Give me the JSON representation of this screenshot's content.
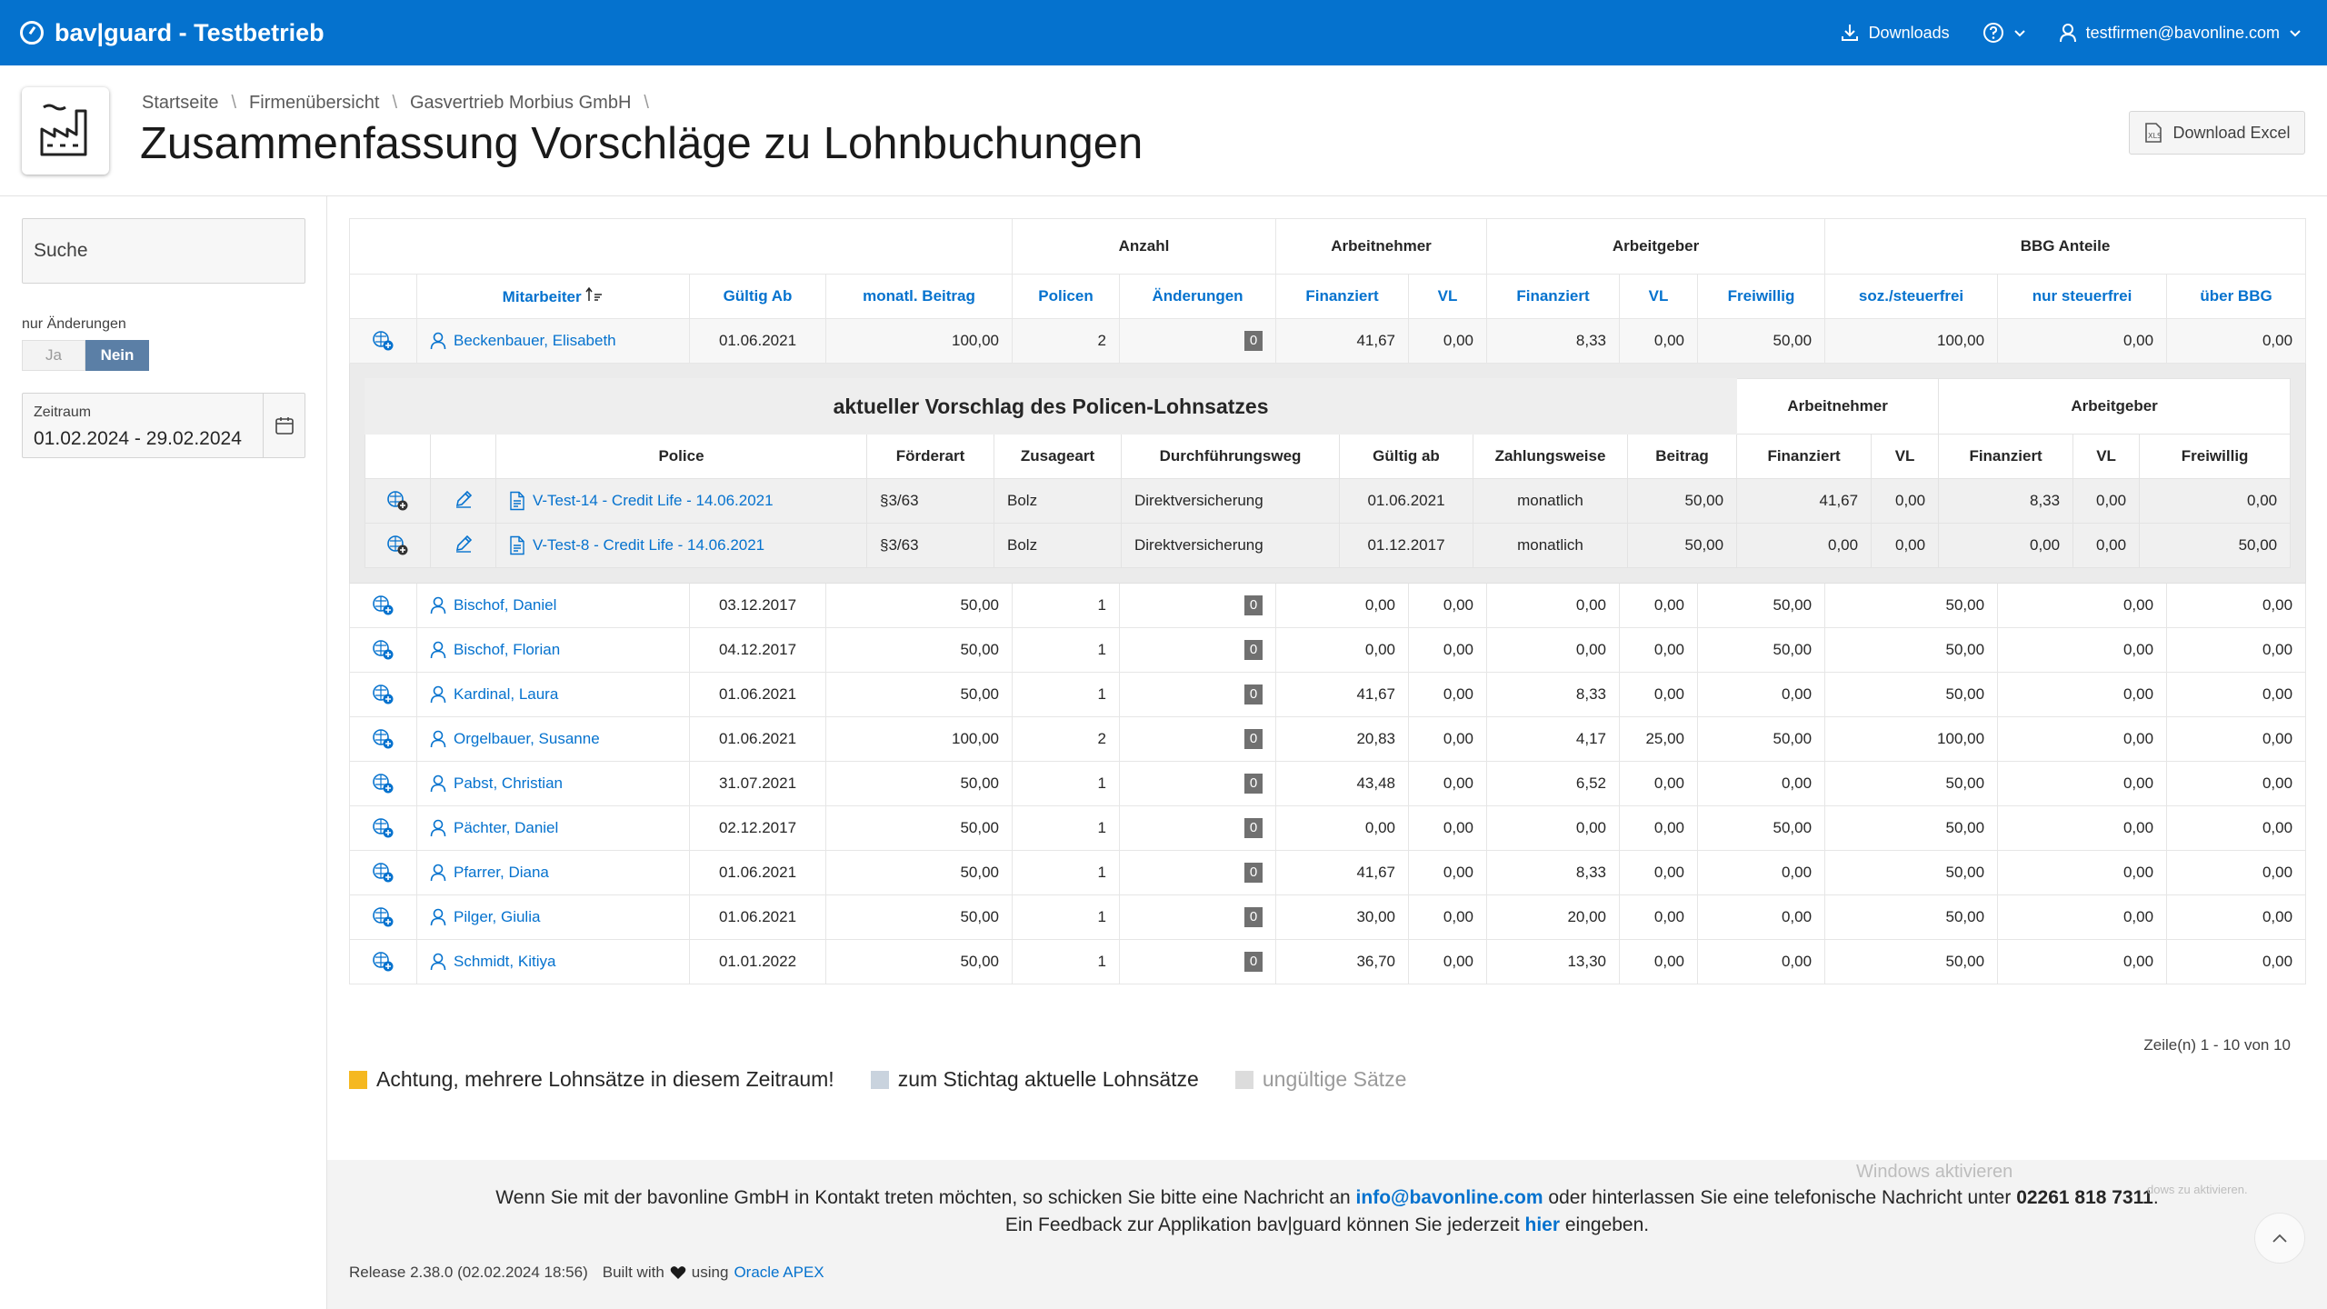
{
  "topbar": {
    "title": "bav|guard - Testbetrieb",
    "downloads": "Downloads",
    "user": "testfirmen@bavonline.com"
  },
  "header": {
    "breadcrumb": [
      "Startseite",
      "Firmenübersicht",
      "Gasvertrieb Morbius GmbH"
    ],
    "title": "Zusammenfassung Vorschläge zu Lohnbuchungen",
    "download_excel": "Download Excel"
  },
  "sidebar": {
    "search_placeholder": "Suche",
    "filter_label": "nur Änderungen",
    "toggle_ja": "Ja",
    "toggle_nein": "Nein",
    "toggle_selected": "Nein",
    "zeitraum_label": "Zeitraum",
    "zeitraum_value": "01.02.2024 - 29.02.2024"
  },
  "table": {
    "group_headers": {
      "anzahl": "Anzahl",
      "arbeitnehmer": "Arbeitnehmer",
      "arbeitgeber": "Arbeitgeber",
      "bbg": "BBG Anteile"
    },
    "columns": [
      "Mitarbeiter",
      "Gültig Ab",
      "monatl. Beitrag",
      "Policen",
      "Änderungen",
      "Finanziert",
      "VL",
      "Finanziert",
      "VL",
      "Freiwillig",
      "soz./steuerfrei",
      "nur steuerfrei",
      "über BBG"
    ],
    "rows": [
      {
        "name": "Beckenbauer, Elisabeth",
        "gueltig": "01.06.2021",
        "beitrag": "100,00",
        "policen": "2",
        "aenderungen": "0",
        "an_fin": "41,67",
        "an_vl": "0,00",
        "ag_fin": "8,33",
        "ag_vl": "0,00",
        "ag_frei": "50,00",
        "soz": "100,00",
        "steuer": "0,00",
        "ueber": "0,00"
      },
      {
        "name": "Bischof, Daniel",
        "gueltig": "03.12.2017",
        "beitrag": "50,00",
        "policen": "1",
        "aenderungen": "0",
        "an_fin": "0,00",
        "an_vl": "0,00",
        "ag_fin": "0,00",
        "ag_vl": "0,00",
        "ag_frei": "50,00",
        "soz": "50,00",
        "steuer": "0,00",
        "ueber": "0,00"
      },
      {
        "name": "Bischof, Florian",
        "gueltig": "04.12.2017",
        "beitrag": "50,00",
        "policen": "1",
        "aenderungen": "0",
        "an_fin": "0,00",
        "an_vl": "0,00",
        "ag_fin": "0,00",
        "ag_vl": "0,00",
        "ag_frei": "50,00",
        "soz": "50,00",
        "steuer": "0,00",
        "ueber": "0,00"
      },
      {
        "name": "Kardinal, Laura",
        "gueltig": "01.06.2021",
        "beitrag": "50,00",
        "policen": "1",
        "aenderungen": "0",
        "an_fin": "41,67",
        "an_vl": "0,00",
        "ag_fin": "8,33",
        "ag_vl": "0,00",
        "ag_frei": "0,00",
        "soz": "50,00",
        "steuer": "0,00",
        "ueber": "0,00"
      },
      {
        "name": "Orgelbauer, Susanne",
        "gueltig": "01.06.2021",
        "beitrag": "100,00",
        "policen": "2",
        "aenderungen": "0",
        "an_fin": "20,83",
        "an_vl": "0,00",
        "ag_fin": "4,17",
        "ag_vl": "25,00",
        "ag_frei": "50,00",
        "soz": "100,00",
        "steuer": "0,00",
        "ueber": "0,00"
      },
      {
        "name": "Pabst, Christian",
        "gueltig": "31.07.2021",
        "beitrag": "50,00",
        "policen": "1",
        "aenderungen": "0",
        "an_fin": "43,48",
        "an_vl": "0,00",
        "ag_fin": "6,52",
        "ag_vl": "0,00",
        "ag_frei": "0,00",
        "soz": "50,00",
        "steuer": "0,00",
        "ueber": "0,00"
      },
      {
        "name": "Pächter, Daniel",
        "gueltig": "02.12.2017",
        "beitrag": "50,00",
        "policen": "1",
        "aenderungen": "0",
        "an_fin": "0,00",
        "an_vl": "0,00",
        "ag_fin": "0,00",
        "ag_vl": "0,00",
        "ag_frei": "50,00",
        "soz": "50,00",
        "steuer": "0,00",
        "ueber": "0,00"
      },
      {
        "name": "Pfarrer, Diana",
        "gueltig": "01.06.2021",
        "beitrag": "50,00",
        "policen": "1",
        "aenderungen": "0",
        "an_fin": "41,67",
        "an_vl": "0,00",
        "ag_fin": "8,33",
        "ag_vl": "0,00",
        "ag_frei": "0,00",
        "soz": "50,00",
        "steuer": "0,00",
        "ueber": "0,00"
      },
      {
        "name": "Pilger, Giulia",
        "gueltig": "01.06.2021",
        "beitrag": "50,00",
        "policen": "1",
        "aenderungen": "0",
        "an_fin": "30,00",
        "an_vl": "0,00",
        "ag_fin": "20,00",
        "ag_vl": "0,00",
        "ag_frei": "0,00",
        "soz": "50,00",
        "steuer": "0,00",
        "ueber": "0,00"
      },
      {
        "name": "Schmidt, Kitiya",
        "gueltig": "01.01.2022",
        "beitrag": "50,00",
        "policen": "1",
        "aenderungen": "0",
        "an_fin": "36,70",
        "an_vl": "0,00",
        "ag_fin": "13,30",
        "ag_vl": "0,00",
        "ag_frei": "0,00",
        "soz": "50,00",
        "steuer": "0,00",
        "ueber": "0,00"
      }
    ],
    "pagination": "Zeile(n) 1 - 10 von 10"
  },
  "detail": {
    "title": "aktueller Vorschlag des Policen-Lohnsatzes",
    "group_arbeitnehmer": "Arbeitnehmer",
    "group_arbeitgeber": "Arbeitgeber",
    "columns": [
      "Police",
      "Förderart",
      "Zusageart",
      "Durchführungsweg",
      "Gültig ab",
      "Zahlungsweise",
      "Beitrag",
      "Finanziert",
      "VL",
      "Finanziert",
      "VL",
      "Freiwillig"
    ],
    "rows": [
      {
        "police": "V-Test-14 - Credit Life - 14.06.2021",
        "foerderart": "§3/63",
        "zusageart": "Bolz",
        "weg": "Direktversicherung",
        "gueltig": "01.06.2021",
        "zahlung": "monatlich",
        "beitrag": "50,00",
        "an_fin": "41,67",
        "an_vl": "0,00",
        "ag_fin": "8,33",
        "ag_vl": "0,00",
        "ag_frei": "0,00"
      },
      {
        "police": "V-Test-8 - Credit Life - 14.06.2021",
        "foerderart": "§3/63",
        "zusageart": "Bolz",
        "weg": "Direktversicherung",
        "gueltig": "01.12.2017",
        "zahlung": "monatlich",
        "beitrag": "50,00",
        "an_fin": "0,00",
        "an_vl": "0,00",
        "ag_fin": "0,00",
        "ag_vl": "0,00",
        "ag_frei": "50,00"
      }
    ]
  },
  "legend": [
    {
      "label": "Achtung, mehrere Lohnsätze in diesem Zeitraum!",
      "color": "#f5b820"
    },
    {
      "label": "zum Stichtag aktuelle Lohnsätze",
      "color": "#c9d3de"
    },
    {
      "label": "ungültige Sätze",
      "color": "#dcdcdc"
    }
  ],
  "footer": {
    "line1_a": "Wenn Sie mit der bavonline GmbH in Kontakt treten möchten, so schicken Sie bitte eine Nachricht an",
    "email": "info@bavonline.com",
    "line1_b": "oder hinterlassen Sie eine telefonische Nachricht unter",
    "phone": "02261 818 7311",
    "line1_c": ".",
    "line2_a": "Ein Feedback zur Applikation bav|guard können Sie jederzeit",
    "line2_link": "hier",
    "line2_b": "eingeben.",
    "release": "Release 2.38.0 (02.02.2024 18:56)",
    "built_with": "Built with",
    "using": "using",
    "apex": "Oracle APEX"
  },
  "watermark": {
    "title": "Windows aktivieren",
    "sub": "dows zu aktivieren."
  },
  "colors": {
    "brand": "#0572ce",
    "toggle_on": "#5b7fa6"
  }
}
